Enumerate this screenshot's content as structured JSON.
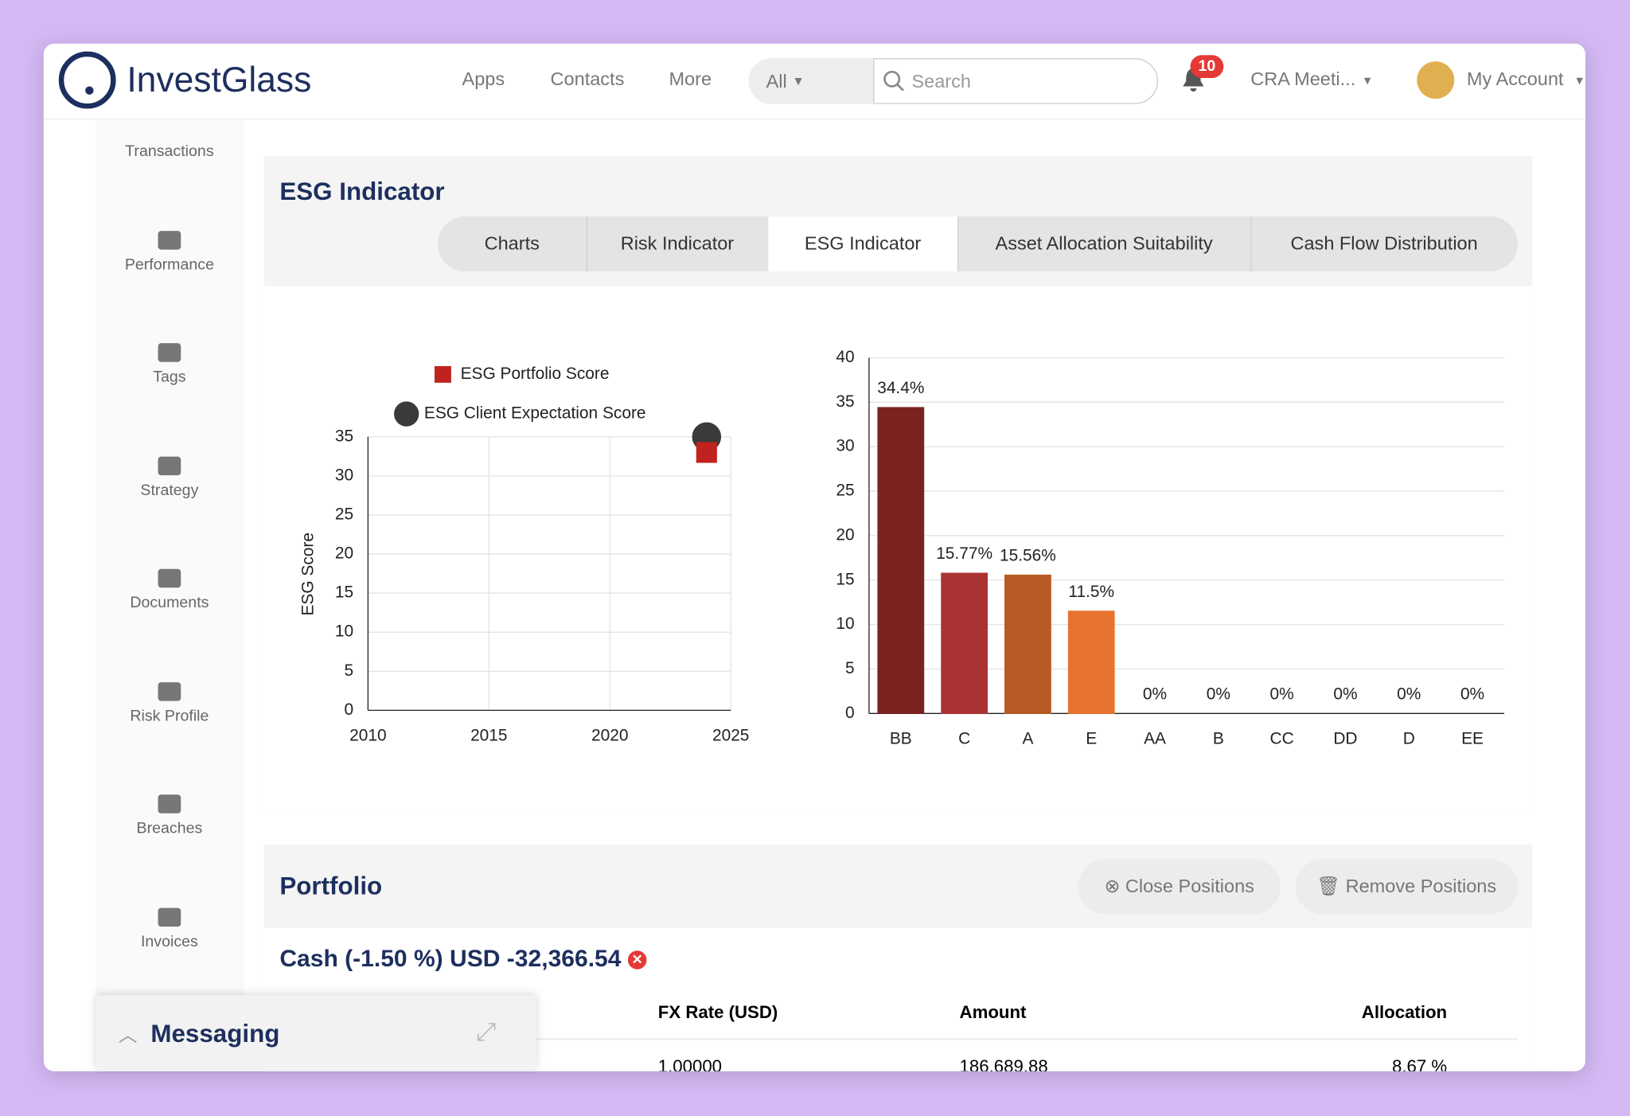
{
  "header": {
    "logo": "InvestGlass",
    "nav": [
      "Apps",
      "Contacts",
      "More"
    ],
    "filter": "All",
    "search_placeholder": "Search",
    "notifications": "10",
    "meeting": "CRA Meeti...",
    "account": "My Account"
  },
  "sidebar": [
    "Transactions",
    "Performance",
    "Tags",
    "Strategy",
    "Documents",
    "Risk Profile",
    "Breaches",
    "Invoices"
  ],
  "esg": {
    "title": "ESG Indicator",
    "tabs": [
      "Charts",
      "Risk Indicator",
      "ESG Indicator",
      "Asset Allocation Suitability",
      "Cash Flow Distribution"
    ],
    "scatter": {
      "type": "scatter",
      "y_label": "ESG Score",
      "xlim": [
        2010,
        2025
      ],
      "xticks": [
        2010,
        2015,
        2020,
        2025
      ],
      "ylim": [
        0,
        35
      ],
      "yticks": [
        0,
        5,
        10,
        15,
        20,
        25,
        30,
        35
      ],
      "grid": true,
      "series": [
        {
          "name": "ESG Portfolio Score",
          "color": "#c0221f",
          "marker": "square",
          "x": [
            2024
          ],
          "values": [
            33
          ]
        },
        {
          "name": "ESG Client Expectation Score",
          "color": "#3a3a3a",
          "marker": "circle",
          "x": [
            2024
          ],
          "values": [
            35
          ]
        }
      ]
    },
    "bar": {
      "type": "bar",
      "categories": [
        "BB",
        "C",
        "A",
        "E",
        "AA",
        "B",
        "CC",
        "DD",
        "D",
        "EE"
      ],
      "values": [
        34.4,
        15.77,
        15.56,
        11.5,
        0,
        0,
        0,
        0,
        0,
        0
      ],
      "value_labels": [
        "34.4%",
        "15.77%",
        "15.56%",
        "11.5%",
        "0%",
        "0%",
        "0%",
        "0%",
        "0%",
        "0%"
      ],
      "colors": [
        "#7a2320",
        "#ab3232",
        "#b85a24",
        "#e8732f",
        "#8a5a3a",
        "#8a5a3a",
        "#555555",
        "#555555",
        "#555555",
        "#555555"
      ],
      "ylim": [
        0,
        40
      ],
      "yticks": [
        0,
        5,
        10,
        15,
        20,
        25,
        30,
        35,
        40
      ],
      "grid": true
    }
  },
  "portfolio": {
    "title": "Portfolio",
    "buttons": [
      "Close Positions",
      "Remove Positions"
    ],
    "cash": "Cash (-1.50 %) USD -32,366.54",
    "columns": [
      "FX Rate (USD)",
      "Amount",
      "Allocation"
    ],
    "rows": [
      [
        "1.00000",
        "186,689.88",
        "8.67 %"
      ]
    ]
  },
  "messaging": "Messaging"
}
